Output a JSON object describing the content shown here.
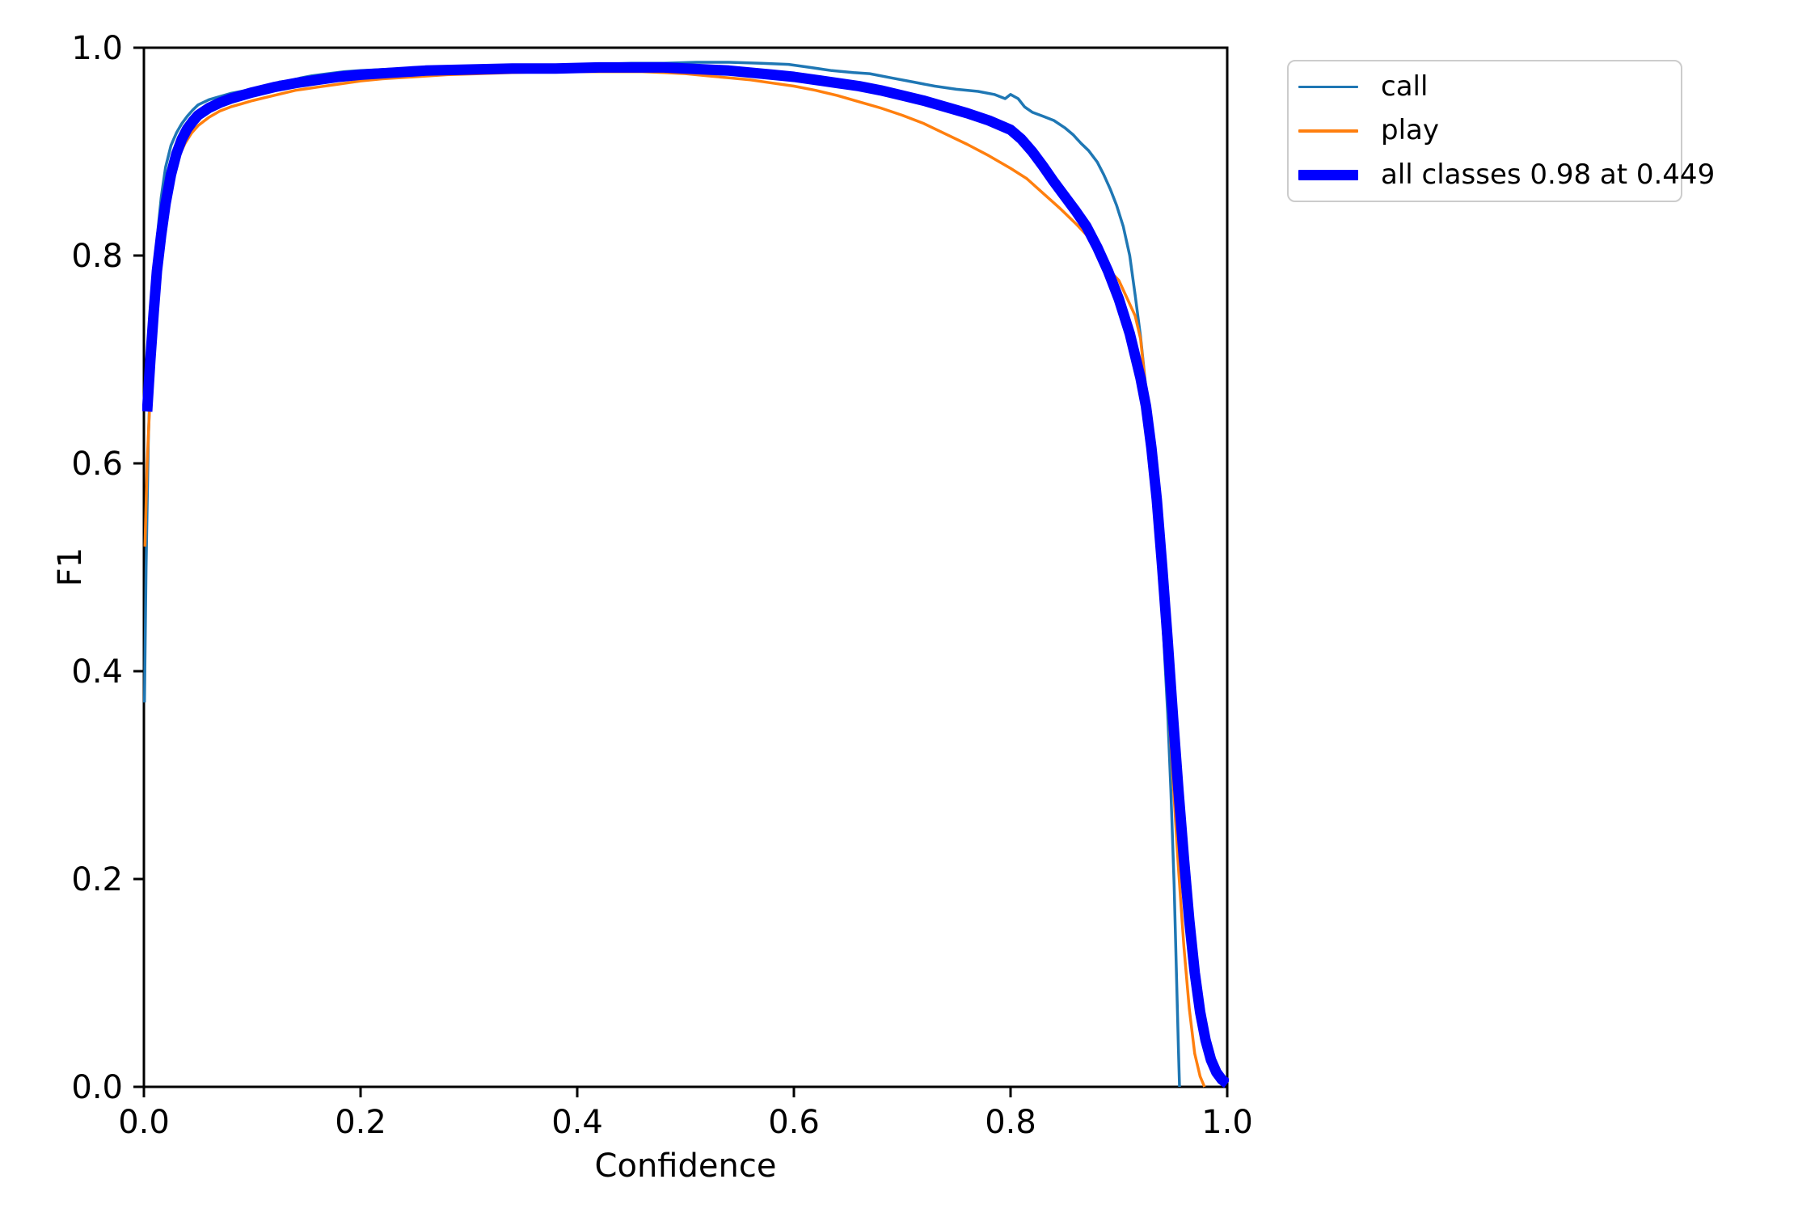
{
  "figure": {
    "background": "#ffffff",
    "title": ""
  },
  "chart_data": {
    "type": "line",
    "title": "",
    "xlabel": "Confidence",
    "ylabel": "F1",
    "xlim": [
      0.0,
      1.0
    ],
    "ylim": [
      0.0,
      1.0
    ],
    "grid": false,
    "xticks": {
      "values": [
        0.0,
        0.2,
        0.4,
        0.6,
        0.8,
        1.0
      ],
      "labels": [
        "0.0",
        "0.2",
        "0.4",
        "0.6",
        "0.8",
        "1.0"
      ]
    },
    "yticks": {
      "values": [
        0.0,
        0.2,
        0.4,
        0.6,
        0.8,
        1.0
      ],
      "labels": [
        "0.0",
        "0.2",
        "0.4",
        "0.6",
        "0.8",
        "1.0"
      ]
    },
    "legend": {
      "position": "outside-upper-right",
      "border_color": "#cccccc"
    },
    "best_f1": 0.98,
    "best_confidence": 0.449,
    "axis_color": "#000000",
    "series": [
      {
        "name": "call",
        "color": "#1f77b4",
        "width": 3.5,
        "points": [
          [
            0.0005,
            0.37
          ],
          [
            0.002,
            0.5
          ],
          [
            0.004,
            0.62
          ],
          [
            0.007,
            0.72
          ],
          [
            0.01,
            0.78
          ],
          [
            0.013,
            0.825
          ],
          [
            0.016,
            0.856
          ],
          [
            0.02,
            0.885
          ],
          [
            0.025,
            0.906
          ],
          [
            0.03,
            0.918
          ],
          [
            0.035,
            0.927
          ],
          [
            0.04,
            0.934
          ],
          [
            0.045,
            0.94
          ],
          [
            0.05,
            0.945
          ],
          [
            0.06,
            0.95
          ],
          [
            0.07,
            0.953
          ],
          [
            0.08,
            0.956
          ],
          [
            0.09,
            0.958
          ],
          [
            0.1,
            0.96
          ],
          [
            0.11,
            0.962
          ],
          [
            0.12,
            0.964
          ],
          [
            0.125,
            0.967
          ],
          [
            0.135,
            0.968
          ],
          [
            0.145,
            0.971
          ],
          [
            0.155,
            0.973
          ],
          [
            0.17,
            0.975
          ],
          [
            0.185,
            0.977
          ],
          [
            0.2,
            0.978
          ],
          [
            0.22,
            0.979
          ],
          [
            0.24,
            0.98
          ],
          [
            0.27,
            0.98
          ],
          [
            0.3,
            0.981
          ],
          [
            0.33,
            0.981
          ],
          [
            0.36,
            0.982
          ],
          [
            0.39,
            0.982
          ],
          [
            0.42,
            0.984
          ],
          [
            0.45,
            0.985
          ],
          [
            0.48,
            0.985
          ],
          [
            0.51,
            0.986
          ],
          [
            0.54,
            0.986
          ],
          [
            0.57,
            0.985
          ],
          [
            0.595,
            0.984
          ],
          [
            0.615,
            0.981
          ],
          [
            0.635,
            0.978
          ],
          [
            0.655,
            0.976
          ],
          [
            0.67,
            0.975
          ],
          [
            0.69,
            0.971
          ],
          [
            0.71,
            0.967
          ],
          [
            0.73,
            0.963
          ],
          [
            0.75,
            0.96
          ],
          [
            0.77,
            0.958
          ],
          [
            0.785,
            0.955
          ],
          [
            0.795,
            0.951
          ],
          [
            0.8,
            0.955
          ],
          [
            0.807,
            0.951
          ],
          [
            0.813,
            0.943
          ],
          [
            0.82,
            0.938
          ],
          [
            0.83,
            0.934
          ],
          [
            0.84,
            0.93
          ],
          [
            0.85,
            0.923
          ],
          [
            0.858,
            0.916
          ],
          [
            0.865,
            0.908
          ],
          [
            0.872,
            0.901
          ],
          [
            0.88,
            0.89
          ],
          [
            0.886,
            0.878
          ],
          [
            0.892,
            0.864
          ],
          [
            0.898,
            0.848
          ],
          [
            0.904,
            0.828
          ],
          [
            0.91,
            0.8
          ],
          [
            0.915,
            0.762
          ],
          [
            0.92,
            0.722
          ],
          [
            0.925,
            0.672
          ],
          [
            0.93,
            0.612
          ],
          [
            0.935,
            0.54
          ],
          [
            0.94,
            0.458
          ],
          [
            0.945,
            0.36
          ],
          [
            0.948,
            0.285
          ],
          [
            0.951,
            0.195
          ],
          [
            0.953,
            0.115
          ],
          [
            0.955,
            0.035
          ],
          [
            0.956,
            0.0
          ]
        ]
      },
      {
        "name": "play",
        "color": "#ff7f0e",
        "width": 3.5,
        "points": [
          [
            0.001,
            0.52
          ],
          [
            0.003,
            0.6
          ],
          [
            0.006,
            0.67
          ],
          [
            0.01,
            0.73
          ],
          [
            0.014,
            0.785
          ],
          [
            0.018,
            0.826
          ],
          [
            0.022,
            0.855
          ],
          [
            0.027,
            0.878
          ],
          [
            0.032,
            0.895
          ],
          [
            0.038,
            0.908
          ],
          [
            0.044,
            0.918
          ],
          [
            0.05,
            0.925
          ],
          [
            0.06,
            0.933
          ],
          [
            0.07,
            0.939
          ],
          [
            0.08,
            0.943
          ],
          [
            0.09,
            0.946
          ],
          [
            0.1,
            0.949
          ],
          [
            0.12,
            0.954
          ],
          [
            0.14,
            0.959
          ],
          [
            0.16,
            0.962
          ],
          [
            0.18,
            0.965
          ],
          [
            0.2,
            0.968
          ],
          [
            0.22,
            0.97
          ],
          [
            0.25,
            0.972
          ],
          [
            0.28,
            0.974
          ],
          [
            0.31,
            0.975
          ],
          [
            0.34,
            0.976
          ],
          [
            0.37,
            0.977
          ],
          [
            0.4,
            0.977
          ],
          [
            0.43,
            0.977
          ],
          [
            0.46,
            0.977
          ],
          [
            0.48,
            0.976
          ],
          [
            0.5,
            0.975
          ],
          [
            0.52,
            0.973
          ],
          [
            0.54,
            0.971
          ],
          [
            0.56,
            0.969
          ],
          [
            0.58,
            0.966
          ],
          [
            0.6,
            0.963
          ],
          [
            0.62,
            0.959
          ],
          [
            0.64,
            0.954
          ],
          [
            0.66,
            0.948
          ],
          [
            0.68,
            0.942
          ],
          [
            0.7,
            0.935
          ],
          [
            0.72,
            0.927
          ],
          [
            0.74,
            0.917
          ],
          [
            0.76,
            0.907
          ],
          [
            0.78,
            0.896
          ],
          [
            0.8,
            0.884
          ],
          [
            0.815,
            0.874
          ],
          [
            0.83,
            0.86
          ],
          [
            0.845,
            0.846
          ],
          [
            0.86,
            0.831
          ],
          [
            0.87,
            0.82
          ],
          [
            0.88,
            0.806
          ],
          [
            0.89,
            0.787
          ],
          [
            0.9,
            0.776
          ],
          [
            0.908,
            0.758
          ],
          [
            0.915,
            0.742
          ],
          [
            0.92,
            0.72
          ],
          [
            0.925,
            0.67
          ],
          [
            0.93,
            0.61
          ],
          [
            0.935,
            0.545
          ],
          [
            0.94,
            0.465
          ],
          [
            0.945,
            0.38
          ],
          [
            0.95,
            0.295
          ],
          [
            0.955,
            0.21
          ],
          [
            0.96,
            0.135
          ],
          [
            0.965,
            0.075
          ],
          [
            0.97,
            0.032
          ],
          [
            0.975,
            0.01
          ],
          [
            0.979,
            0.0
          ]
        ]
      },
      {
        "name": "all classes 0.98 at 0.449",
        "color": "#0000ff",
        "width": 13,
        "points": [
          [
            0.003,
            0.65
          ],
          [
            0.006,
            0.7
          ],
          [
            0.009,
            0.745
          ],
          [
            0.012,
            0.785
          ],
          [
            0.016,
            0.82
          ],
          [
            0.02,
            0.85
          ],
          [
            0.025,
            0.878
          ],
          [
            0.03,
            0.898
          ],
          [
            0.035,
            0.912
          ],
          [
            0.04,
            0.922
          ],
          [
            0.045,
            0.929
          ],
          [
            0.05,
            0.935
          ],
          [
            0.06,
            0.942
          ],
          [
            0.07,
            0.947
          ],
          [
            0.08,
            0.951
          ],
          [
            0.09,
            0.954
          ],
          [
            0.1,
            0.957
          ],
          [
            0.12,
            0.962
          ],
          [
            0.14,
            0.966
          ],
          [
            0.16,
            0.969
          ],
          [
            0.18,
            0.972
          ],
          [
            0.2,
            0.974
          ],
          [
            0.23,
            0.976
          ],
          [
            0.26,
            0.978
          ],
          [
            0.3,
            0.979
          ],
          [
            0.34,
            0.98
          ],
          [
            0.38,
            0.98
          ],
          [
            0.42,
            0.981
          ],
          [
            0.449,
            0.981
          ],
          [
            0.48,
            0.981
          ],
          [
            0.5,
            0.98
          ],
          [
            0.52,
            0.979
          ],
          [
            0.54,
            0.978
          ],
          [
            0.56,
            0.976
          ],
          [
            0.58,
            0.974
          ],
          [
            0.6,
            0.972
          ],
          [
            0.62,
            0.969
          ],
          [
            0.64,
            0.966
          ],
          [
            0.66,
            0.963
          ],
          [
            0.68,
            0.959
          ],
          [
            0.7,
            0.954
          ],
          [
            0.72,
            0.949
          ],
          [
            0.74,
            0.943
          ],
          [
            0.76,
            0.937
          ],
          [
            0.78,
            0.93
          ],
          [
            0.8,
            0.921
          ],
          [
            0.81,
            0.912
          ],
          [
            0.82,
            0.9
          ],
          [
            0.83,
            0.886
          ],
          [
            0.84,
            0.871
          ],
          [
            0.85,
            0.857
          ],
          [
            0.86,
            0.843
          ],
          [
            0.87,
            0.828
          ],
          [
            0.88,
            0.808
          ],
          [
            0.89,
            0.785
          ],
          [
            0.9,
            0.758
          ],
          [
            0.91,
            0.725
          ],
          [
            0.92,
            0.682
          ],
          [
            0.925,
            0.655
          ],
          [
            0.93,
            0.615
          ],
          [
            0.935,
            0.565
          ],
          [
            0.94,
            0.5
          ],
          [
            0.945,
            0.43
          ],
          [
            0.95,
            0.355
          ],
          [
            0.955,
            0.285
          ],
          [
            0.96,
            0.22
          ],
          [
            0.965,
            0.16
          ],
          [
            0.97,
            0.11
          ],
          [
            0.975,
            0.072
          ],
          [
            0.98,
            0.045
          ],
          [
            0.985,
            0.026
          ],
          [
            0.99,
            0.014
          ],
          [
            0.995,
            0.007
          ],
          [
            1.0,
            0.003
          ]
        ]
      }
    ]
  }
}
